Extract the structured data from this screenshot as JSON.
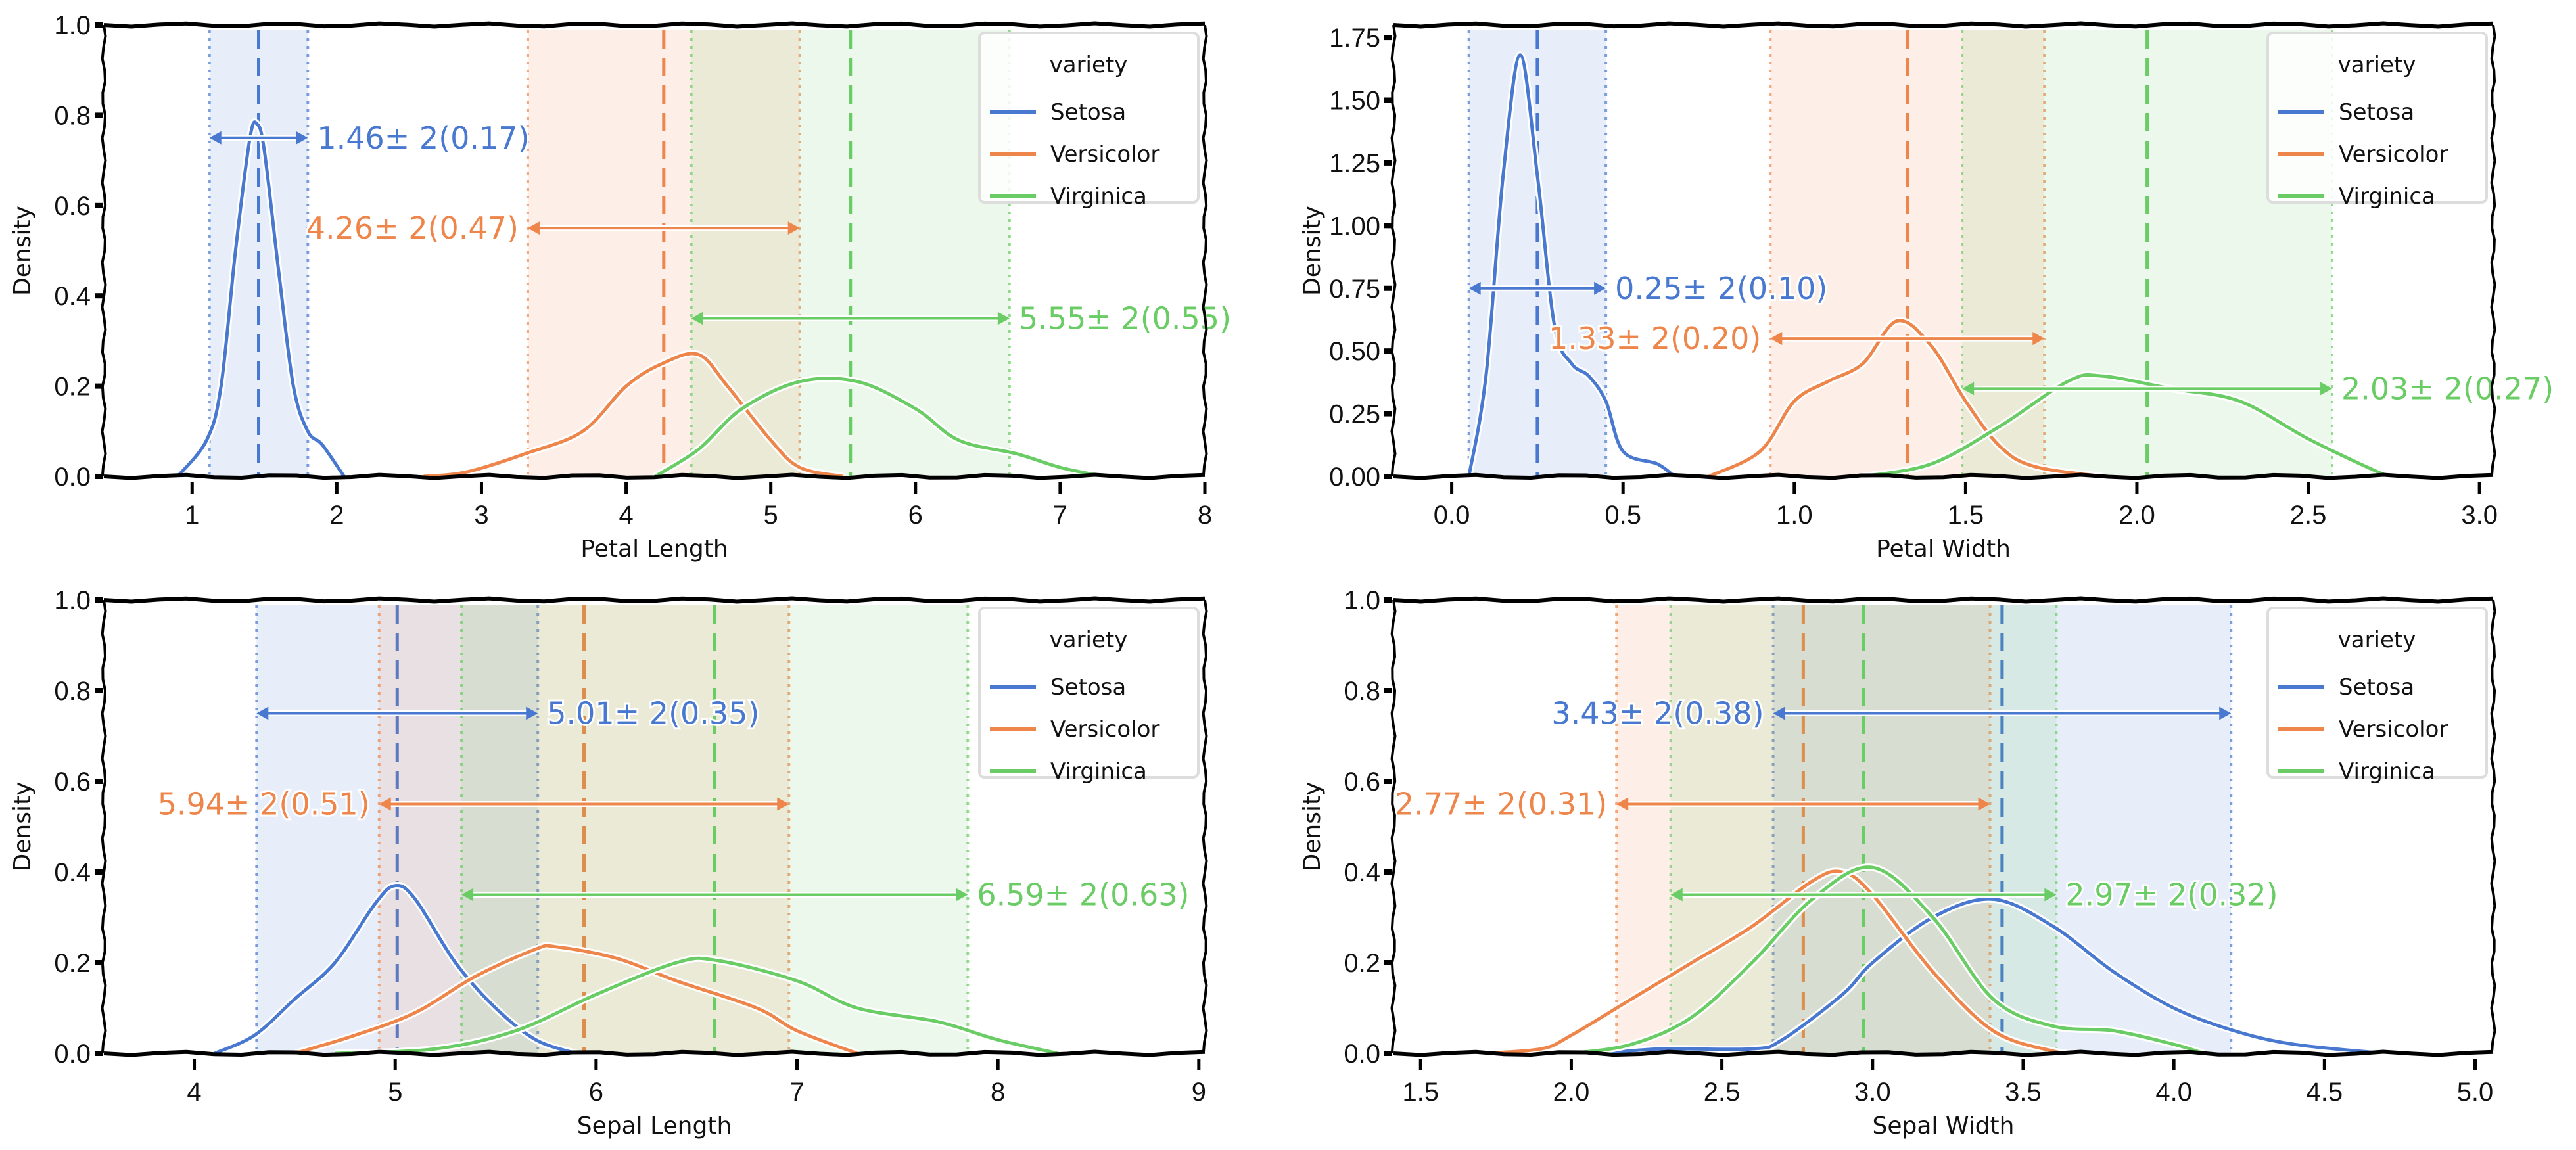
{
  "colors": {
    "Setosa": "#4878d0",
    "Versicolor": "#ee854a",
    "Virginica": "#6acc64"
  },
  "chart_data": [
    {
      "type": "line",
      "title": "",
      "xlabel": "Petal Length",
      "ylabel": "Density",
      "xlim": [
        0.39,
        8
      ],
      "ylim": [
        0,
        1.0
      ],
      "xticks": [
        "1",
        "2",
        "3",
        "4",
        "5",
        "6",
        "7",
        "8"
      ],
      "yticks": [
        "0.0",
        "0.2",
        "0.4",
        "0.6",
        "0.8",
        "1.0"
      ],
      "legend": {
        "title": "variety",
        "placement": "top-right"
      },
      "series": [
        {
          "name": "Setosa",
          "mean": 1.46,
          "sd": 0.17,
          "label": "1.46± 2(0.17)",
          "arrow_y": 0.75,
          "label_side": "right",
          "x": [
            0.9,
            1.1,
            1.2,
            1.3,
            1.4,
            1.45,
            1.5,
            1.6,
            1.7,
            1.8,
            1.9,
            2.05
          ],
          "y": [
            0,
            0.08,
            0.2,
            0.5,
            0.75,
            0.78,
            0.72,
            0.45,
            0.2,
            0.1,
            0.07,
            0
          ]
        },
        {
          "name": "Versicolor",
          "mean": 4.26,
          "sd": 0.47,
          "label": "4.26± 2(0.47)",
          "arrow_y": 0.55,
          "label_side": "left",
          "x": [
            2.6,
            2.9,
            3.3,
            3.7,
            4.0,
            4.25,
            4.5,
            4.7,
            5.0,
            5.2,
            5.5
          ],
          "y": [
            0,
            0.01,
            0.05,
            0.1,
            0.2,
            0.25,
            0.27,
            0.2,
            0.08,
            0.02,
            0
          ]
        },
        {
          "name": "Virginica",
          "mean": 5.55,
          "sd": 0.55,
          "label": "5.55± 2(0.55)",
          "arrow_y": 0.35,
          "label_side": "right",
          "x": [
            4.2,
            4.5,
            4.8,
            5.2,
            5.6,
            6.0,
            6.3,
            6.7,
            7.0,
            7.3
          ],
          "y": [
            0,
            0.06,
            0.15,
            0.21,
            0.21,
            0.15,
            0.08,
            0.05,
            0.02,
            0
          ]
        }
      ]
    },
    {
      "type": "line",
      "title": "",
      "xlabel": "Petal Width",
      "ylabel": "Density",
      "xlim": [
        -0.17,
        3.04
      ],
      "ylim": [
        0,
        1.8
      ],
      "xticks": [
        "0.0",
        "0.5",
        "1.0",
        "1.5",
        "2.0",
        "2.5",
        "3.0"
      ],
      "yticks": [
        "0.00",
        "0.25",
        "0.50",
        "0.75",
        "1.00",
        "1.25",
        "1.50",
        "1.75"
      ],
      "legend": {
        "title": "variety",
        "placement": "top-right"
      },
      "series": [
        {
          "name": "Setosa",
          "mean": 0.25,
          "sd": 0.1,
          "label": "0.25± 2(0.10)",
          "arrow_y": 0.75,
          "label_side": "right",
          "x": [
            0.05,
            0.1,
            0.15,
            0.2,
            0.25,
            0.3,
            0.35,
            0.4,
            0.45,
            0.5,
            0.6,
            0.65
          ],
          "y": [
            0,
            0.4,
            1.2,
            1.68,
            1.2,
            0.6,
            0.45,
            0.4,
            0.3,
            0.1,
            0.05,
            0
          ]
        },
        {
          "name": "Versicolor",
          "mean": 1.33,
          "sd": 0.2,
          "label": "1.33± 2(0.20)",
          "arrow_y": 0.55,
          "label_side": "left",
          "x": [
            0.75,
            0.9,
            1.0,
            1.1,
            1.2,
            1.3,
            1.4,
            1.5,
            1.6,
            1.7,
            1.9
          ],
          "y": [
            0,
            0.1,
            0.3,
            0.38,
            0.45,
            0.62,
            0.52,
            0.3,
            0.12,
            0.04,
            0
          ]
        },
        {
          "name": "Virginica",
          "mean": 2.03,
          "sd": 0.27,
          "label": "2.03± 2(0.27)",
          "arrow_y": 0.35,
          "label_side": "right",
          "x": [
            1.2,
            1.4,
            1.6,
            1.8,
            1.9,
            2.1,
            2.3,
            2.5,
            2.7,
            2.75
          ],
          "y": [
            0,
            0.05,
            0.2,
            0.38,
            0.4,
            0.35,
            0.3,
            0.15,
            0.02,
            0
          ]
        }
      ]
    },
    {
      "type": "line",
      "title": "",
      "xlabel": "Sepal Length",
      "ylabel": "Density",
      "xlim": [
        3.55,
        9.03
      ],
      "ylim": [
        0,
        1.0
      ],
      "xticks": [
        "4",
        "5",
        "6",
        "7",
        "8",
        "9"
      ],
      "yticks": [
        "0.0",
        "0.2",
        "0.4",
        "0.6",
        "0.8",
        "1.0"
      ],
      "legend": {
        "title": "variety",
        "placement": "top-right"
      },
      "series": [
        {
          "name": "Setosa",
          "mean": 5.01,
          "sd": 0.35,
          "label": "5.01± 2(0.35)",
          "arrow_y": 0.75,
          "label_side": "right",
          "x": [
            4.1,
            4.3,
            4.5,
            4.7,
            4.9,
            5.0,
            5.1,
            5.3,
            5.5,
            5.7,
            5.9
          ],
          "y": [
            0,
            0.04,
            0.12,
            0.2,
            0.33,
            0.37,
            0.34,
            0.2,
            0.1,
            0.03,
            0
          ]
        },
        {
          "name": "Versicolor",
          "mean": 5.94,
          "sd": 0.51,
          "label": "5.94± 2(0.51)",
          "arrow_y": 0.55,
          "label_side": "left",
          "x": [
            4.5,
            4.8,
            5.1,
            5.4,
            5.7,
            5.8,
            6.1,
            6.4,
            6.8,
            7.0,
            7.3
          ],
          "y": [
            0,
            0.04,
            0.09,
            0.17,
            0.23,
            0.235,
            0.21,
            0.16,
            0.1,
            0.05,
            0
          ]
        },
        {
          "name": "Virginica",
          "mean": 6.59,
          "sd": 0.63,
          "label": "6.59± 2(0.63)",
          "arrow_y": 0.35,
          "label_side": "right",
          "x": [
            4.7,
            5.2,
            5.6,
            6.0,
            6.4,
            6.6,
            7.0,
            7.3,
            7.7,
            8.0,
            8.3
          ],
          "y": [
            0,
            0.01,
            0.05,
            0.13,
            0.2,
            0.205,
            0.16,
            0.1,
            0.07,
            0.03,
            0
          ]
        }
      ]
    },
    {
      "type": "line",
      "title": "",
      "xlabel": "Sepal Width",
      "ylabel": "Density",
      "xlim": [
        1.41,
        5.06
      ],
      "ylim": [
        0,
        1.0
      ],
      "xticks": [
        "1.5",
        "2.0",
        "2.5",
        "3.0",
        "3.5",
        "4.0",
        "4.5",
        "5.0"
      ],
      "yticks": [
        "0.0",
        "0.2",
        "0.4",
        "0.6",
        "0.8",
        "1.0"
      ],
      "legend": {
        "title": "variety",
        "placement": "top-right"
      },
      "series": [
        {
          "name": "Setosa",
          "mean": 3.43,
          "sd": 0.38,
          "label": "3.43± 2(0.38)",
          "arrow_y": 0.75,
          "label_side": "right",
          "x": [
            2.1,
            2.3,
            2.6,
            2.7,
            2.9,
            3.0,
            3.2,
            3.4,
            3.6,
            3.8,
            4.0,
            4.2,
            4.4,
            4.7
          ],
          "y": [
            0,
            0.01,
            0.01,
            0.03,
            0.13,
            0.2,
            0.3,
            0.34,
            0.28,
            0.18,
            0.1,
            0.05,
            0.02,
            0
          ]
        },
        {
          "name": "Versicolor",
          "mean": 2.77,
          "sd": 0.31,
          "label": "2.77± 2(0.31)",
          "arrow_y": 0.55,
          "label_side": "left",
          "x": [
            1.7,
            1.9,
            2.0,
            2.2,
            2.4,
            2.6,
            2.8,
            2.9,
            3.0,
            3.2,
            3.4,
            3.6,
            3.7
          ],
          "y": [
            0,
            0.01,
            0.04,
            0.12,
            0.2,
            0.28,
            0.38,
            0.4,
            0.35,
            0.18,
            0.05,
            0.005,
            0
          ]
        },
        {
          "name": "Virginica",
          "mean": 2.97,
          "sd": 0.32,
          "label": "2.97± 2(0.32)",
          "arrow_y": 0.35,
          "label_side": "right",
          "x": [
            2.0,
            2.2,
            2.4,
            2.6,
            2.8,
            3.0,
            3.2,
            3.4,
            3.6,
            3.8,
            4.0,
            4.1
          ],
          "y": [
            0,
            0.02,
            0.08,
            0.2,
            0.34,
            0.41,
            0.3,
            0.12,
            0.06,
            0.05,
            0.02,
            0
          ]
        }
      ]
    }
  ]
}
